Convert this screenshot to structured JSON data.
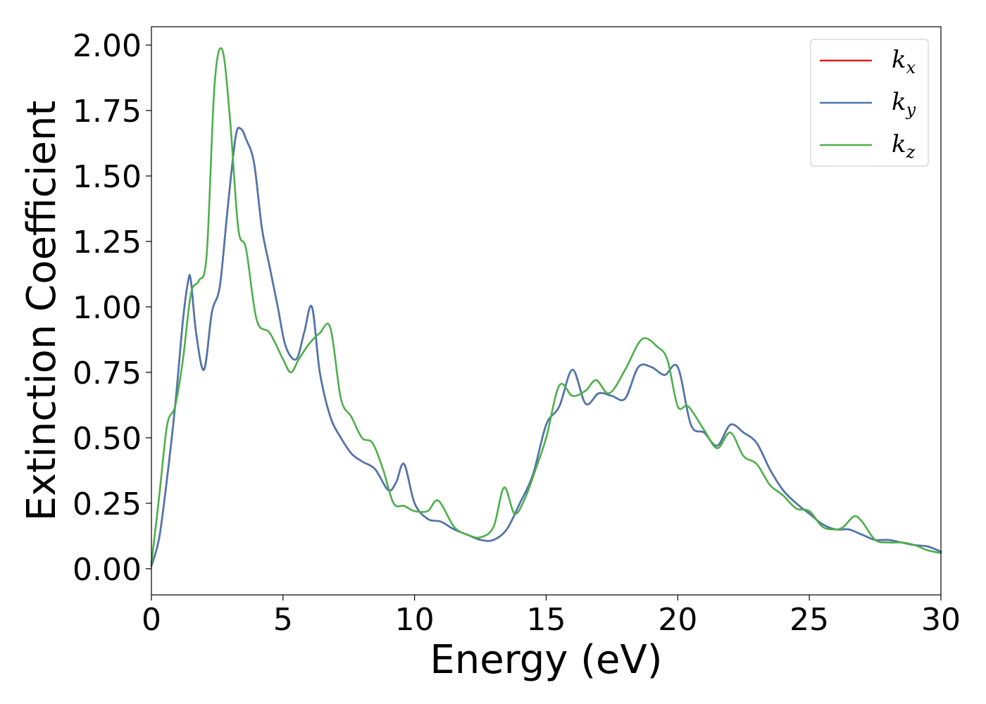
{
  "chart_data": {
    "type": "line",
    "title": "",
    "xlabel": "Energy (eV)",
    "ylabel": "Extinction Coefficient",
    "xlim": [
      0,
      30
    ],
    "ylim": [
      -0.1,
      2.07
    ],
    "xticks": [
      0,
      5,
      10,
      15,
      20,
      25,
      30
    ],
    "xtick_labels": [
      "0",
      "5",
      "10",
      "15",
      "20",
      "25",
      "30"
    ],
    "yticks": [
      0,
      0.25,
      0.5,
      0.75,
      1.0,
      1.25,
      1.5,
      1.75,
      2.0
    ],
    "ytick_labels": [
      "0.00",
      "0.25",
      "0.50",
      "0.75",
      "1.00",
      "1.25",
      "1.50",
      "1.75",
      "2.00"
    ],
    "grid": false,
    "legend_position": "top-right",
    "series": [
      {
        "name": "k_x",
        "legend_base": "k",
        "legend_sub": "x",
        "color": "#e41a1c",
        "x": [
          0,
          0.3,
          0.6,
          0.9,
          1.2,
          1.4,
          1.5,
          1.7,
          2.0,
          2.3,
          2.6,
          2.9,
          3.2,
          3.4,
          3.6,
          3.9,
          4.2,
          4.5,
          4.8,
          5.1,
          5.5,
          5.8,
          6.1,
          6.4,
          6.8,
          7.2,
          7.6,
          8.0,
          8.5,
          9.0,
          9.3,
          9.6,
          10.0,
          10.5,
          11.0,
          11.5,
          12.0,
          12.5,
          13.0,
          13.5,
          14.0,
          14.5,
          15.0,
          15.5,
          16.0,
          16.5,
          17.0,
          17.5,
          18.0,
          18.5,
          19.0,
          19.5,
          20.0,
          20.5,
          21.0,
          21.5,
          22.0,
          22.5,
          23.0,
          23.5,
          24.0,
          24.5,
          25.0,
          25.5,
          26.0,
          26.5,
          27.0,
          27.5,
          28.0,
          28.5,
          29.0,
          29.5,
          30.0
        ],
        "y": [
          0.01,
          0.12,
          0.35,
          0.62,
          0.95,
          1.1,
          1.1,
          0.9,
          0.76,
          0.98,
          1.08,
          1.38,
          1.65,
          1.68,
          1.64,
          1.55,
          1.3,
          1.15,
          1.0,
          0.85,
          0.8,
          0.9,
          1.0,
          0.75,
          0.58,
          0.5,
          0.44,
          0.41,
          0.38,
          0.3,
          0.33,
          0.4,
          0.25,
          0.19,
          0.18,
          0.15,
          0.13,
          0.11,
          0.11,
          0.15,
          0.25,
          0.36,
          0.55,
          0.62,
          0.76,
          0.63,
          0.67,
          0.66,
          0.65,
          0.77,
          0.77,
          0.74,
          0.77,
          0.55,
          0.52,
          0.47,
          0.55,
          0.52,
          0.48,
          0.38,
          0.3,
          0.25,
          0.21,
          0.17,
          0.15,
          0.15,
          0.13,
          0.11,
          0.11,
          0.1,
          0.09,
          0.085,
          0.065
        ]
      },
      {
        "name": "k_y",
        "legend_base": "k",
        "legend_sub": "y",
        "color": "#4a78b0",
        "x": [
          0,
          0.3,
          0.6,
          0.9,
          1.2,
          1.4,
          1.5,
          1.7,
          2.0,
          2.3,
          2.6,
          2.9,
          3.2,
          3.4,
          3.6,
          3.9,
          4.2,
          4.5,
          4.8,
          5.1,
          5.5,
          5.8,
          6.1,
          6.4,
          6.8,
          7.2,
          7.6,
          8.0,
          8.5,
          9.0,
          9.3,
          9.6,
          10.0,
          10.5,
          11.0,
          11.5,
          12.0,
          12.5,
          13.0,
          13.5,
          14.0,
          14.5,
          15.0,
          15.5,
          16.0,
          16.5,
          17.0,
          17.5,
          18.0,
          18.5,
          19.0,
          19.5,
          20.0,
          20.5,
          21.0,
          21.5,
          22.0,
          22.5,
          23.0,
          23.5,
          24.0,
          24.5,
          25.0,
          25.5,
          26.0,
          26.5,
          27.0,
          27.5,
          28.0,
          28.5,
          29.0,
          29.5,
          30.0
        ],
        "y": [
          0.01,
          0.12,
          0.35,
          0.62,
          0.95,
          1.1,
          1.1,
          0.9,
          0.76,
          0.98,
          1.08,
          1.38,
          1.65,
          1.68,
          1.64,
          1.55,
          1.3,
          1.15,
          1.0,
          0.85,
          0.8,
          0.9,
          1.0,
          0.75,
          0.58,
          0.5,
          0.44,
          0.41,
          0.38,
          0.3,
          0.33,
          0.4,
          0.25,
          0.19,
          0.18,
          0.15,
          0.13,
          0.11,
          0.11,
          0.15,
          0.25,
          0.36,
          0.55,
          0.62,
          0.76,
          0.63,
          0.67,
          0.66,
          0.65,
          0.77,
          0.77,
          0.74,
          0.77,
          0.55,
          0.52,
          0.47,
          0.55,
          0.52,
          0.48,
          0.38,
          0.3,
          0.25,
          0.21,
          0.17,
          0.15,
          0.15,
          0.13,
          0.11,
          0.11,
          0.1,
          0.09,
          0.085,
          0.065
        ]
      },
      {
        "name": "k_z",
        "legend_base": "k",
        "legend_sub": "z",
        "color": "#4daf4a",
        "x": [
          0,
          0.3,
          0.6,
          0.9,
          1.2,
          1.5,
          1.8,
          2.1,
          2.4,
          2.7,
          3.0,
          3.3,
          3.6,
          4.0,
          4.5,
          5.0,
          5.3,
          5.6,
          6.0,
          6.4,
          6.8,
          7.2,
          7.6,
          8.0,
          8.4,
          8.8,
          9.2,
          9.6,
          10.0,
          10.5,
          10.9,
          11.5,
          12.0,
          12.5,
          13.0,
          13.4,
          13.8,
          14.2,
          14.6,
          15.0,
          15.5,
          16.0,
          16.5,
          16.9,
          17.4,
          18.0,
          18.5,
          18.8,
          19.2,
          19.6,
          20.0,
          20.4,
          21.0,
          21.5,
          22.0,
          22.5,
          23.0,
          23.5,
          24.0,
          24.5,
          25.0,
          25.5,
          26.0,
          26.3,
          26.7,
          27.0,
          27.5,
          28.0,
          28.5,
          29.0,
          29.5,
          30.0
        ],
        "y": [
          0.02,
          0.28,
          0.55,
          0.62,
          0.8,
          1.05,
          1.1,
          1.2,
          1.85,
          1.98,
          1.7,
          1.3,
          1.22,
          0.95,
          0.9,
          0.8,
          0.75,
          0.8,
          0.86,
          0.9,
          0.92,
          0.65,
          0.58,
          0.5,
          0.48,
          0.38,
          0.25,
          0.24,
          0.22,
          0.22,
          0.26,
          0.16,
          0.13,
          0.12,
          0.16,
          0.31,
          0.21,
          0.27,
          0.38,
          0.5,
          0.7,
          0.66,
          0.68,
          0.72,
          0.67,
          0.76,
          0.86,
          0.88,
          0.85,
          0.8,
          0.62,
          0.62,
          0.53,
          0.46,
          0.52,
          0.43,
          0.4,
          0.32,
          0.28,
          0.23,
          0.22,
          0.16,
          0.15,
          0.16,
          0.2,
          0.18,
          0.11,
          0.1,
          0.1,
          0.09,
          0.07,
          0.06
        ]
      }
    ]
  }
}
